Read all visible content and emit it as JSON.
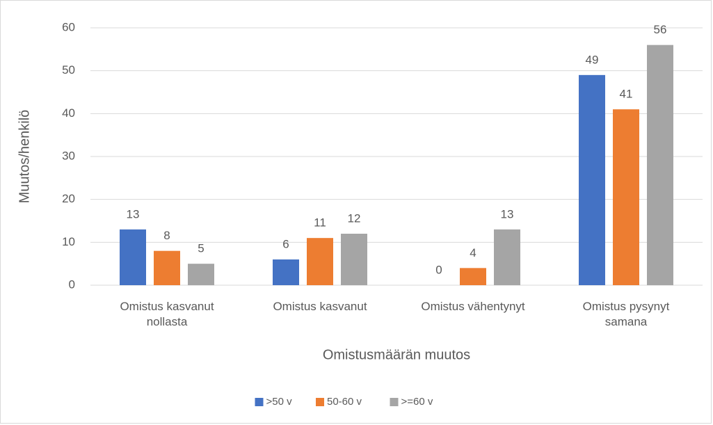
{
  "chart_data": {
    "type": "bar",
    "x_label": "Omistusmäärän muutos",
    "y_label": "Muutos/henkilö",
    "categories": [
      "Omistus kasvanut nollasta",
      "Omistus kasvanut",
      "Omistus vähentynyt",
      "Omistus pysynyt samana"
    ],
    "series": [
      {
        "name": ">50 v",
        "color": "#4472c4",
        "values": [
          13,
          6,
          0,
          49
        ]
      },
      {
        "name": "50-60 v",
        "color": "#ed7d31",
        "values": [
          8,
          11,
          4,
          41
        ]
      },
      {
        "name": ">=60 v",
        "color": "#a5a5a5",
        "values": [
          5,
          12,
          13,
          56
        ]
      }
    ],
    "ylim": [
      0,
      60
    ],
    "yticks": [
      0,
      10,
      20,
      30,
      40,
      50,
      60
    ],
    "grid": true,
    "legend": "bottom"
  }
}
